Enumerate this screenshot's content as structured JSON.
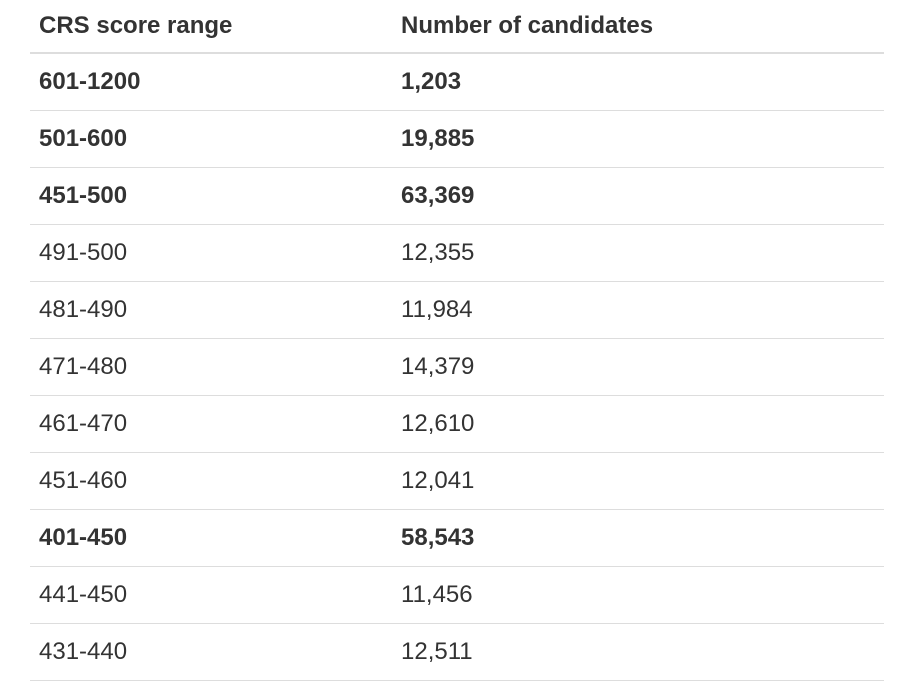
{
  "table": {
    "header": [
      "CRS score range",
      "Number of candidates"
    ],
    "rows": [
      [
        "601-1200",
        "1,203"
      ],
      [
        "501-600",
        "19,885"
      ],
      [
        "451-500",
        "63,369"
      ],
      [
        "491-500",
        "12,355"
      ],
      [
        "481-490",
        "11,984"
      ],
      [
        "471-480",
        "14,379"
      ],
      [
        "461-470",
        "12,610"
      ],
      [
        "451-460",
        "12,041"
      ],
      [
        "401-450",
        "58,543"
      ],
      [
        "441-450",
        "11,456"
      ],
      [
        "431-440",
        "12,511"
      ]
    ]
  }
}
